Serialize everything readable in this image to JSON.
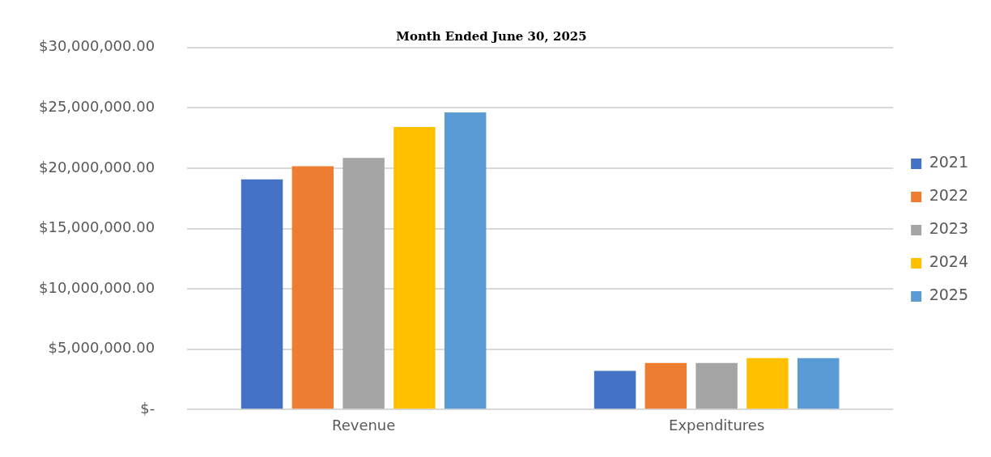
{
  "chart_data": {
    "type": "bar",
    "title": "Month Ended June 30, 2025",
    "categories": [
      "Revenue",
      "Expenditures"
    ],
    "series": [
      {
        "name": "2021",
        "color": "#4472c4",
        "values": [
          19080000,
          3200000
        ]
      },
      {
        "name": "2022",
        "color": "#ed7d31",
        "values": [
          20160000,
          3850000
        ]
      },
      {
        "name": "2023",
        "color": "#a5a5a5",
        "values": [
          20850000,
          3850000
        ]
      },
      {
        "name": "2024",
        "color": "#ffc000",
        "values": [
          23420000,
          4250000
        ]
      },
      {
        "name": "2025",
        "color": "#5b9bd5",
        "values": [
          24620000,
          4250000
        ]
      }
    ],
    "ylim": [
      0,
      30000000
    ],
    "yticks": [
      {
        "value": 0,
        "label": "$-"
      },
      {
        "value": 5000000,
        "label": "$5,000,000.00"
      },
      {
        "value": 10000000,
        "label": "$10,000,000.00"
      },
      {
        "value": 15000000,
        "label": "$15,000,000.00"
      },
      {
        "value": 20000000,
        "label": "$20,000,000.00"
      },
      {
        "value": 25000000,
        "label": "$25,000,000.00"
      },
      {
        "value": 30000000,
        "label": "$30,000,000.00"
      }
    ],
    "grid": "y",
    "legend": "right"
  }
}
